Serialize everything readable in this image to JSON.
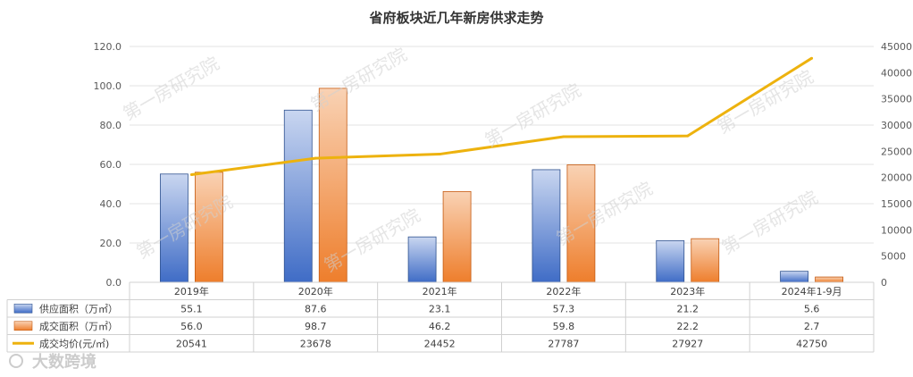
{
  "chart_data": {
    "type": "bar",
    "title": "省府板块近几年新房供求走势",
    "categories": [
      "2019年",
      "2020年",
      "2021年",
      "2022年",
      "2023年",
      "2024年1-9月"
    ],
    "series": [
      {
        "name": "供应面积（万㎡）",
        "type": "bar",
        "axis": "left",
        "color": "#4472C4",
        "values": [
          55.1,
          87.6,
          23.1,
          57.3,
          21.2,
          5.6
        ],
        "labels": [
          "55.1",
          "87.6",
          "23.1",
          "57.3",
          "21.2",
          "5.6"
        ]
      },
      {
        "name": "成交面积（万㎡）",
        "type": "bar",
        "axis": "left",
        "color": "#ED7D31",
        "values": [
          56.0,
          98.7,
          46.2,
          59.8,
          22.2,
          2.7
        ],
        "labels": [
          "56.0",
          "98.7",
          "46.2",
          "59.8",
          "22.2",
          "2.7"
        ]
      },
      {
        "name": "成交均价(元/㎡)",
        "type": "line",
        "axis": "right",
        "color": "#EDB20E",
        "values": [
          20541,
          23678,
          24452,
          27787,
          27927,
          42750
        ],
        "labels": [
          "20541",
          "23678",
          "24452",
          "27787",
          "27927",
          "42750"
        ]
      }
    ],
    "y_left": {
      "min": 0,
      "max": 120,
      "ticks": [
        "0.0",
        "20.0",
        "40.0",
        "60.0",
        "80.0",
        "100.0",
        "120.0"
      ]
    },
    "y_right": {
      "min": 0,
      "max": 45000,
      "ticks": [
        "0",
        "5000",
        "10000",
        "15000",
        "20000",
        "25000",
        "30000",
        "35000",
        "40000",
        "45000"
      ]
    },
    "grid": true,
    "legend": "data-table"
  },
  "watermark": "第一房研究院",
  "logo_text": "大数跨境"
}
